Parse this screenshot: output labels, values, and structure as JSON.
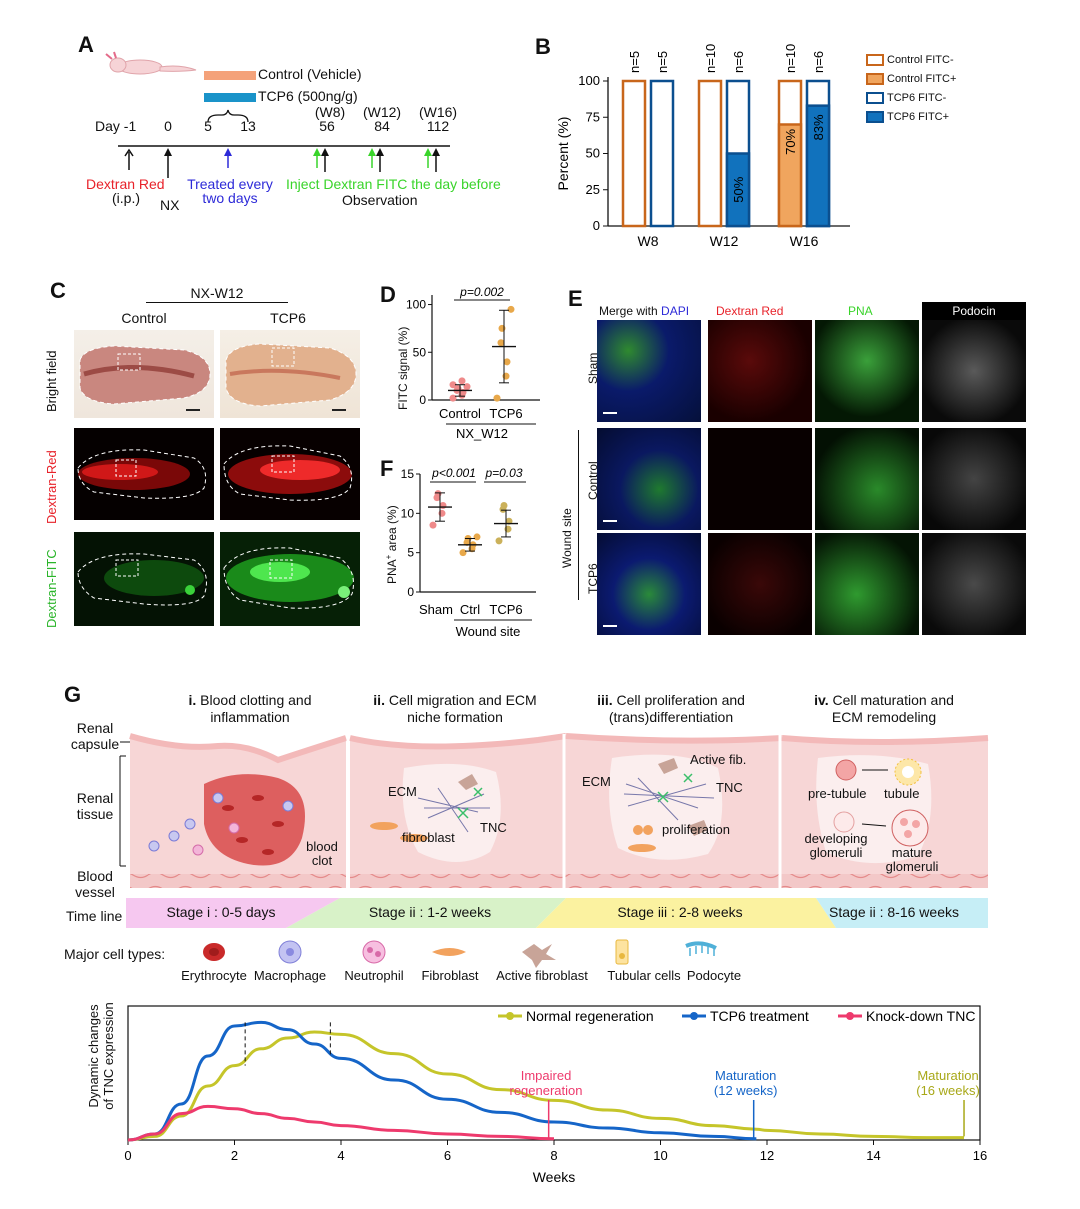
{
  "panels": {
    "A": {
      "label": "A",
      "legend_control": "Control (Vehicle)",
      "legend_tcp6": "TCP6 (500ng/g)",
      "day_label": "Day -1",
      "days": [
        "0",
        "5",
        "13",
        "56",
        "84",
        "112"
      ],
      "weeks": [
        "(W8)",
        "(W12)",
        "(W16)"
      ],
      "dextran_red": "Dextran Red",
      "ip": "(i.p.)",
      "nx": "NX",
      "treated_line1": "Treated every",
      "treated_line2": "two days",
      "inject": "Inject Dextran FITC the day before",
      "observation": "Observation",
      "colors": {
        "control": "#f4a27a",
        "tcp6": "#1a93c9",
        "red": "#e8222a",
        "blue": "#2d2ad8",
        "green": "#39d42a"
      }
    },
    "B": {
      "label": "B",
      "legend": [
        "Control FITC-",
        "Control FITC+",
        "TCP6 FITC-",
        "TCP6 FITC+"
      ]
    },
    "C": {
      "label": "C",
      "group": "NX-W12",
      "col_control": "Control",
      "col_tcp6": "TCP6",
      "row_bright": "Bright field",
      "row_red": "Dextran-Red",
      "row_fitc": "Dextran-FITC"
    },
    "D": {
      "label": "D",
      "ylabel": "FITC signal (%)",
      "pvalue": "p=0.002",
      "x_control": "Control",
      "x_tcp6": "TCP6",
      "group": "NX_W12",
      "yticks": [
        "0",
        "50",
        "100"
      ]
    },
    "E": {
      "label": "E",
      "col_merge_prefix": "Merge with ",
      "col_merge_dapi": "DAPI",
      "col_red": "Dextran Red",
      "col_pna": "PNA",
      "col_podocin": "Podocin",
      "row_sham": "Sham",
      "row_control": "Control",
      "row_tcp6": "TCP6",
      "wound_site": "Wound site"
    },
    "F": {
      "label": "F",
      "ylabel_pre": "PNA",
      "ylabel_sup": "+",
      "ylabel_post": " area (%)",
      "p1": "p<0.001",
      "p2": "p=0.03",
      "x_sham": "Sham",
      "x_ctrl": "Ctrl",
      "x_tcp6": "TCP6",
      "group": "Wound site",
      "yticks": [
        "0",
        "5",
        "10",
        "15"
      ]
    },
    "G": {
      "label": "G",
      "stage1": {
        "num": "i.",
        "text1": "Blood clotting and",
        "text2": "inflammation"
      },
      "stage2": {
        "num": "ii.",
        "text1": "Cell migration and ECM",
        "text2": "niche formation"
      },
      "stage3": {
        "num": "iii.",
        "text1": "Cell proliferation and",
        "text2": "(trans)differentiation"
      },
      "stage4": {
        "num": "iv.",
        "text1": "Cell maturation and",
        "text2": "ECM remodeling"
      },
      "side_capsule1": "Renal",
      "side_capsule2": "capsule",
      "side_tissue1": "Renal",
      "side_tissue2": "tissue",
      "side_vessel1": "Blood",
      "side_vessel2": "vessel",
      "blood_clot1": "blood",
      "blood_clot2": "clot",
      "ecm": "ECM",
      "fibroblast": "fibroblast",
      "tnc": "TNC",
      "active_fib": "Active fib.",
      "proliferation": "proliferation",
      "pre_tubule": "pre-tubule",
      "tubule": "tubule",
      "developing1": "developing",
      "developing2": "glomeruli",
      "mature1": "mature",
      "mature2": "glomeruli",
      "timeline_label": "Time line",
      "timeline": [
        "Stage i : 0-5 days",
        "Stage ii : 1-2 weeks",
        "Stage iii : 2-8 weeks",
        "Stage ii : 8-16 weeks"
      ],
      "cell_types_label": "Major cell types:",
      "cell_types": [
        "Erythrocyte",
        "Macrophage",
        "Neutrophil",
        "Fibroblast",
        "Active fibroblast",
        "Tubular cells",
        "Podocyte"
      ],
      "curve_ylabel1": "Dynamic changes",
      "curve_ylabel2": "of TNC expression",
      "legend": [
        "Normal regeneration",
        "TCP6 treatment",
        "Knock-down TNC"
      ],
      "impaired1": "Impaired",
      "impaired2": "regeneration",
      "mat_blue1": "Maturation",
      "mat_blue2": "(12 weeks)",
      "mat_olive1": "Maturation",
      "mat_olive2": "(16 weeks)",
      "xlabel": "Weeks",
      "colors": {
        "normal": "#c5c52a",
        "tcp6": "#1565c8",
        "knockdown": "#ee3a6d"
      }
    }
  },
  "chart_data": [
    {
      "type": "bar",
      "panel": "B",
      "title": "",
      "xlabel": "",
      "ylabel": "Percent (%)",
      "ylim": [
        0,
        100
      ],
      "yticks": [
        0,
        25,
        50,
        75,
        100
      ],
      "categories": [
        "W8",
        "W12",
        "W16"
      ],
      "groups": [
        "Control",
        "TCP6"
      ],
      "series": [
        {
          "name": "Control FITC+",
          "values": [
            0,
            0,
            70
          ]
        },
        {
          "name": "TCP6 FITC+",
          "values": [
            0,
            50,
            83
          ]
        }
      ],
      "n_labels": {
        "Control": [
          "n=5",
          "n=10",
          "n=10"
        ],
        "TCP6": [
          "n=5",
          "n=6",
          "n=6"
        ]
      },
      "bar_labels": {
        "TCP6_W12": "50%",
        "Control_W16": "70%",
        "TCP6_W16": "83%"
      },
      "legend_position": "right",
      "colors": {
        "control_edge": "#c8661b",
        "control_fill": "#f0a55e",
        "tcp6_edge": "#0b4f8f",
        "tcp6_fill": "#1172bd"
      }
    },
    {
      "type": "scatter",
      "panel": "D",
      "ylabel": "FITC signal (%)",
      "ylim": [
        0,
        110
      ],
      "categories": [
        "Control",
        "TCP6"
      ],
      "points": {
        "Control": [
          2,
          5,
          8,
          10,
          12,
          14,
          16,
          20
        ],
        "TCP6": [
          2,
          25,
          40,
          60,
          75,
          95
        ]
      },
      "mean": [
        10,
        56
      ],
      "sd": [
        6,
        38
      ]
    },
    {
      "type": "scatter",
      "panel": "F",
      "ylabel": "PNA+ area (%)",
      "ylim": [
        0,
        15
      ],
      "categories": [
        "Sham",
        "Ctrl",
        "TCP6"
      ],
      "points": {
        "Sham": [
          8.5,
          10,
          11,
          12,
          12.5
        ],
        "Ctrl": [
          5,
          5.5,
          6,
          6.3,
          6.8,
          7
        ],
        "TCP6": [
          6.5,
          8,
          9,
          10.5,
          11
        ]
      },
      "mean": [
        10.8,
        6.0,
        8.7
      ],
      "sd": [
        1.8,
        0.8,
        1.7
      ]
    },
    {
      "type": "line",
      "panel": "G",
      "xlabel": "Weeks",
      "ylabel": "Dynamic changes of TNC expression",
      "xlim": [
        0,
        16
      ],
      "xticks": [
        0,
        2,
        4,
        6,
        8,
        10,
        12,
        14,
        16
      ],
      "x": [
        0,
        0.5,
        1,
        1.5,
        2,
        2.5,
        3,
        3.5,
        4,
        5,
        6,
        7,
        8,
        9,
        10,
        11,
        11.8,
        12,
        13,
        14,
        15,
        15.7
      ],
      "series": [
        {
          "name": "Normal regeneration",
          "values": [
            0,
            0.03,
            0.2,
            0.45,
            0.62,
            0.76,
            0.85,
            0.9,
            0.88,
            0.72,
            0.55,
            0.42,
            0.33,
            0.25,
            0.18,
            0.12,
            0.09,
            0.08,
            0.05,
            0.03,
            0.02,
            0.02
          ]
        },
        {
          "name": "TCP6 treatment",
          "values": [
            0,
            0.05,
            0.3,
            0.7,
            0.95,
            0.98,
            0.92,
            0.8,
            0.68,
            0.5,
            0.34,
            0.23,
            0.15,
            0.1,
            0.06,
            0.03,
            0.01,
            null,
            null,
            null,
            null,
            null
          ]
        },
        {
          "name": "Knock-down TNC",
          "values": [
            0,
            0.05,
            0.22,
            0.28,
            0.26,
            0.22,
            0.18,
            0.15,
            0.12,
            0.08,
            0.05,
            0.03,
            0.01,
            null,
            null,
            null,
            null,
            null,
            null,
            null,
            null,
            null
          ]
        }
      ],
      "legend_position": "top-right"
    }
  ]
}
